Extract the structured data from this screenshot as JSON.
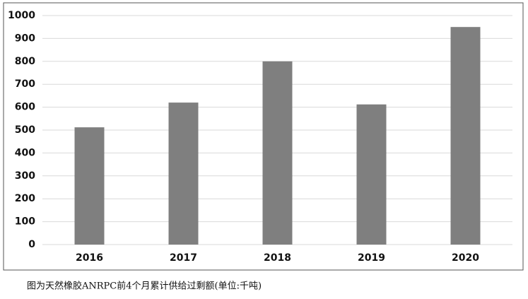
{
  "chart_data": {
    "type": "bar",
    "caption": "图为天然橡胶ANRPC前4个月累计供给过剩额(单位:千吨)",
    "categories": [
      "2016",
      "2017",
      "2018",
      "2019",
      "2020"
    ],
    "values": [
      512,
      620,
      800,
      612,
      950
    ],
    "color": "#7f7f7f",
    "ylim": [
      0,
      1000
    ],
    "yticks": [
      0,
      100,
      200,
      300,
      400,
      500,
      600,
      700,
      800,
      900,
      1000
    ],
    "grid": true
  }
}
